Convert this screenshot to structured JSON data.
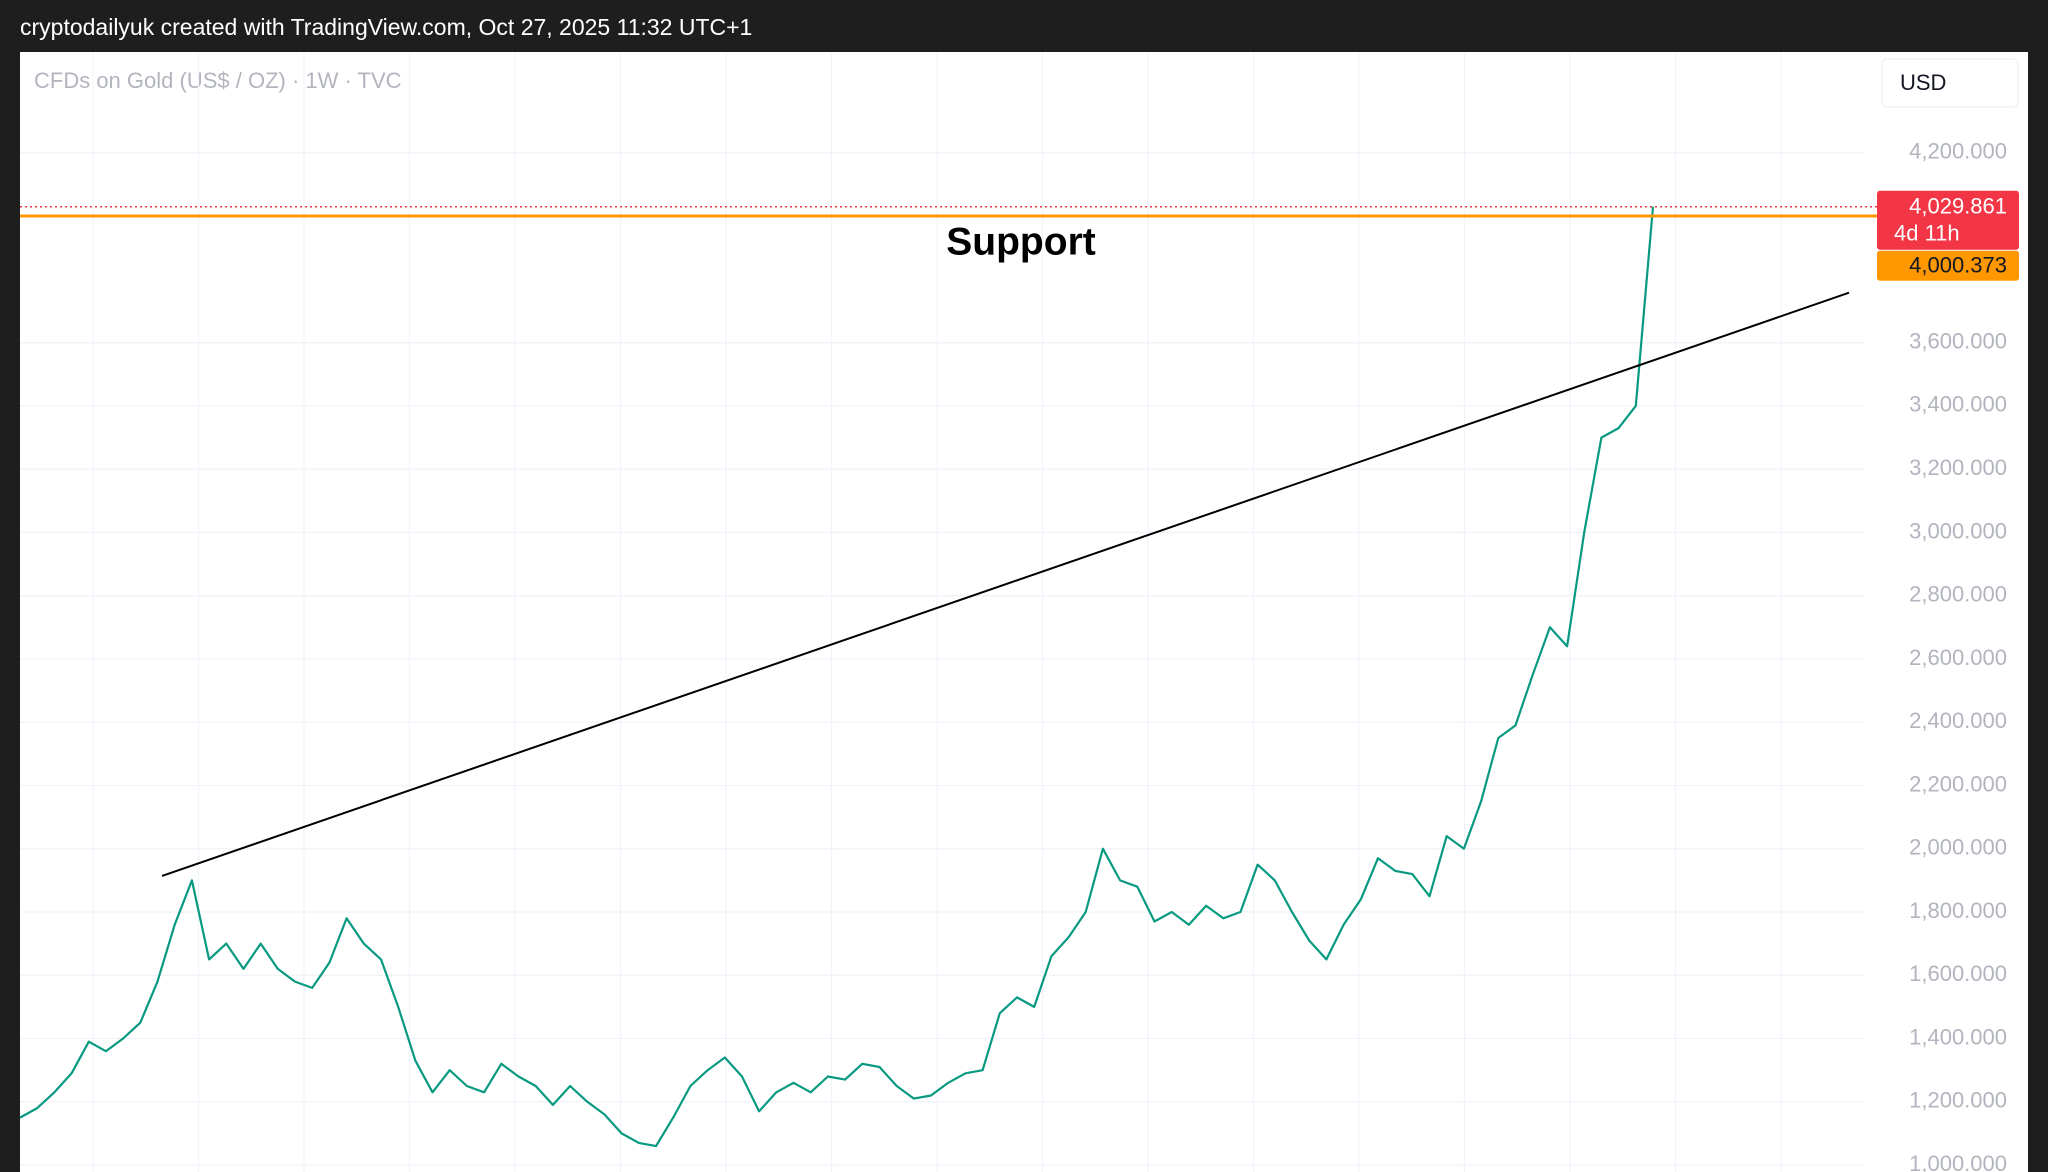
{
  "chart_data": {
    "type": "line",
    "header": "cryptodailyuk created with TradingView.com, Oct 27, 2025 11:32 UTC+1",
    "title": "CFDs on Gold (US$ / OZ) · 1W · TVC",
    "currency": "USD",
    "color": "#089981",
    "grid": true,
    "ylim": [
      978,
      4519
    ],
    "yticks": [
      {
        "value": 1000,
        "label": "1,000.000"
      },
      {
        "value": 1200,
        "label": "1,200.000"
      },
      {
        "value": 1400,
        "label": "1,400.000"
      },
      {
        "value": 1600,
        "label": "1,600.000"
      },
      {
        "value": 1800,
        "label": "1,800.000"
      },
      {
        "value": 2000,
        "label": "2,000.000"
      },
      {
        "value": 2200,
        "label": "2,200.000"
      },
      {
        "value": 2400,
        "label": "2,400.000"
      },
      {
        "value": 2600,
        "label": "2,600.000"
      },
      {
        "value": 2800,
        "label": "2,800.000"
      },
      {
        "value": 3000,
        "label": "3,000.000"
      },
      {
        "value": 3200,
        "label": "3,200.000"
      },
      {
        "value": 3400,
        "label": "3,400.000"
      },
      {
        "value": 3600,
        "label": "3,600.000"
      },
      {
        "value": 4200,
        "label": "4,200.000"
      }
    ],
    "values": [
      1150,
      1180,
      1230,
      1290,
      1390,
      1360,
      1400,
      1450,
      1580,
      1760,
      1900,
      1650,
      1700,
      1620,
      1700,
      1620,
      1580,
      1560,
      1640,
      1780,
      1700,
      1650,
      1500,
      1330,
      1230,
      1300,
      1250,
      1230,
      1320,
      1280,
      1250,
      1190,
      1250,
      1200,
      1160,
      1100,
      1070,
      1060,
      1150,
      1250,
      1300,
      1340,
      1280,
      1170,
      1230,
      1260,
      1230,
      1280,
      1270,
      1320,
      1310,
      1250,
      1210,
      1220,
      1260,
      1290,
      1300,
      1480,
      1530,
      1500,
      1660,
      1720,
      1800,
      2000,
      1900,
      1880,
      1770,
      1800,
      1760,
      1820,
      1780,
      1800,
      1950,
      1900,
      1800,
      1710,
      1650,
      1760,
      1840,
      1970,
      1930,
      1920,
      1850,
      2040,
      2000,
      2150,
      2350,
      2390,
      2550,
      2700,
      2640,
      3000,
      3300,
      3330,
      3400,
      4029.861
    ],
    "last_price": {
      "value": 4029.861,
      "label": "4,029.861",
      "countdown": "4d 11h",
      "color": "#f23645"
    },
    "support": {
      "value": 4000.373,
      "label": "4,000.373",
      "text": "Support",
      "color": "#ff9800"
    },
    "trendline": {
      "values": [
        1914,
        3758
      ],
      "color": "#000000"
    }
  }
}
